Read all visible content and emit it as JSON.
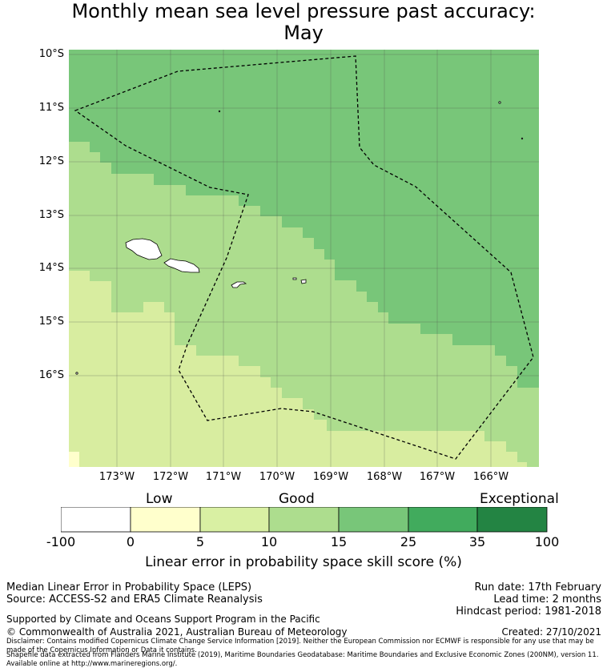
{
  "title": {
    "line1": "Monthly mean sea level pressure past accuracy:",
    "line2": "May"
  },
  "map": {
    "lat_labels": [
      "10°S",
      "11°S",
      "12°S",
      "13°S",
      "14°S",
      "15°S",
      "16°S"
    ],
    "lon_labels": [
      "173°W",
      "172°W",
      "171°W",
      "170°W",
      "169°W",
      "168°W",
      "167°W",
      "166°W"
    ],
    "colors": {
      "cat_5_10": "#d8eda0",
      "cat_10_15": "#addd8e",
      "cat_15_25": "#78c679",
      "cat_0_5": "#ffffcc",
      "land": "#ffffff",
      "boundary": "#000000",
      "grid": "#555555"
    }
  },
  "colorbar": {
    "categories": [
      "Low",
      "Good",
      "Exceptional"
    ],
    "ticks": [
      "-100",
      "0",
      "5",
      "10",
      "15",
      "25",
      "35",
      "100"
    ],
    "colors": [
      "#ffffff",
      "#ffffcc",
      "#d9f0a3",
      "#addd8e",
      "#78c679",
      "#41ab5d",
      "#238443"
    ],
    "label": "Linear error in probability space skill score (%)"
  },
  "footer": {
    "left_line1": "Median Linear Error in Probability Space (LEPS)",
    "left_line2": "Source: ACCESS-S2 and ERA5 Climate Reanalysis",
    "right_line1": "Run date: 17th February",
    "right_line2": "Lead time: 2 months",
    "right_line3": "Hindcast period: 1981-2018",
    "support": "Supported by Climate and Oceans Support Program in the Pacific",
    "copyright": "© Commonwealth of Australia 2021, Australian Bureau of Meteorology",
    "created": "Created: 27/10/2021",
    "disclaimer": "Disclaimer: Contains modified Copernicus Climate Change Service Information [2019]. Neither the European Commission nor ECMWF is responsible for any use that may be made of the Copernicus Information or Data it contains.",
    "shapefile": "Shapefile data extracted from Flanders Marine Institute (2019), Maritime Boundaries Geodatabase: Maritime Boundaries and Exclusive Economic Zones (200NM), version 11. Available online at http://www.marineregions.org/."
  }
}
